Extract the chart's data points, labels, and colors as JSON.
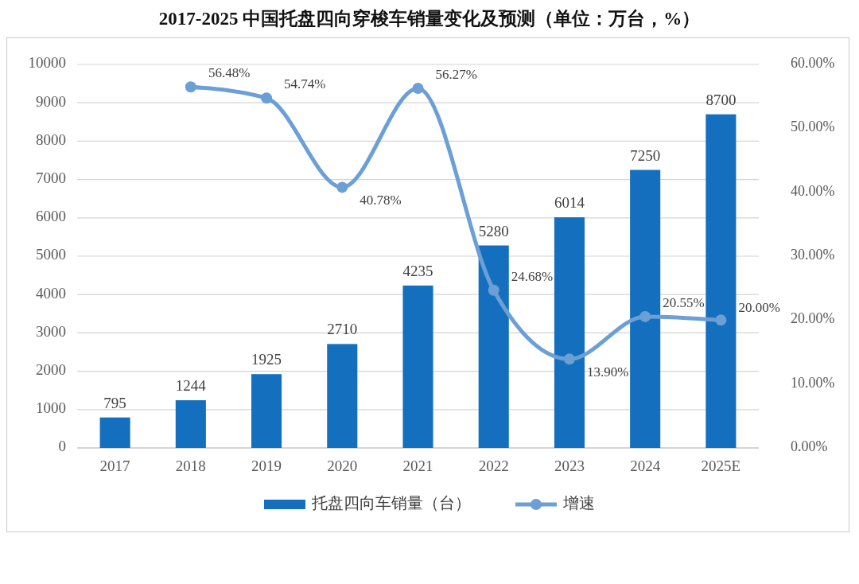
{
  "chart_data": {
    "type": "bar",
    "title": "2017-2025 中国托盘四向穿梭车销量变化及预测（单位：万台，%）",
    "categories": [
      "2017",
      "2018",
      "2019",
      "2020",
      "2021",
      "2022",
      "2023",
      "2024",
      "2025E"
    ],
    "series": [
      {
        "name": "托盘四向车销量（台）",
        "color": "#1470be",
        "values": [
          795,
          1244,
          1925,
          2710,
          4235,
          5280,
          6014,
          7250,
          8700
        ],
        "value_labels": [
          "795",
          "1244",
          "1925",
          "2710",
          "4235",
          "5280",
          "6014",
          "7250",
          "8700"
        ]
      },
      {
        "name": "增速",
        "type": "line",
        "axis": "y2",
        "color": "#6b9fd6",
        "values": [
          null,
          56.48,
          54.74,
          40.78,
          56.27,
          24.68,
          13.9,
          20.55,
          20.0
        ],
        "value_labels": [
          null,
          "56.48%",
          "54.74%",
          "40.78%",
          "56.27%",
          "24.68%",
          "13.90%",
          "20.55%",
          "20.00%"
        ]
      }
    ],
    "ylim": [
      0,
      10000
    ],
    "yticks": [
      0,
      1000,
      2000,
      3000,
      4000,
      5000,
      6000,
      7000,
      8000,
      9000,
      10000
    ],
    "y2lim": [
      0,
      60
    ],
    "y2ticks": [
      {
        "value": 0,
        "label": "0.00%"
      },
      {
        "value": 10,
        "label": "10.00%"
      },
      {
        "value": 20,
        "label": "20.00%"
      },
      {
        "value": 30,
        "label": "30.00%"
      },
      {
        "value": 40,
        "label": "40.00%"
      },
      {
        "value": 50,
        "label": "50.00%"
      },
      {
        "value": 60,
        "label": "60.00%"
      }
    ],
    "grid": "y",
    "legend": "bottom",
    "marker": "circle"
  }
}
